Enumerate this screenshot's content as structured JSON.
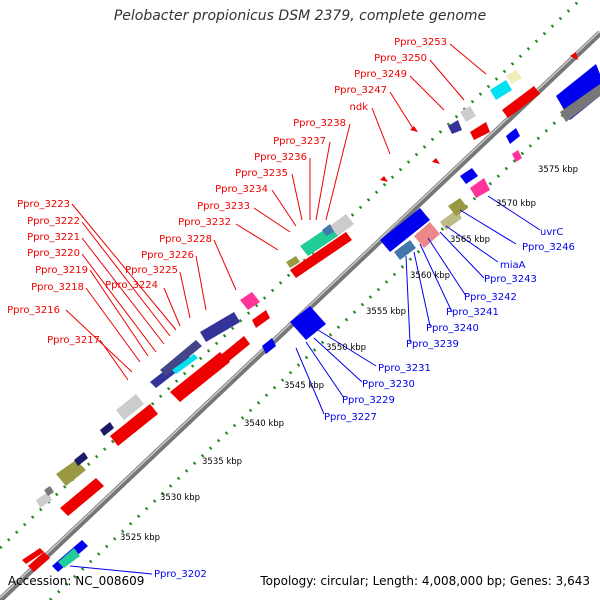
{
  "title": "Pelobacter propionicus DSM 2379, complete genome",
  "accession": "Accession: NC_008609",
  "summary": "Topology: circular; Length: 4,008,000 bp; Genes: 3,643",
  "colors": {
    "red": "#ee0000",
    "blue": "#0000ee",
    "navy": "#333399",
    "navy2": "#1a1a66",
    "indigo": "#444488",
    "cyan": "#00e0f0",
    "green": "#22cc99",
    "olive": "#999944",
    "olive2": "#bbbb88",
    "pink": "#ff3399",
    "gray": "#cccccc",
    "dkgray": "#777777",
    "slate": "#4477aa",
    "salmon": "#ee8888",
    "dots": "#228822"
  },
  "kbp_labels": [
    "3525 kbp",
    "3530 kbp",
    "3535 kbp",
    "3540 kbp",
    "3545 kbp",
    "3550 kbp",
    "3555 kbp",
    "3560 kbp",
    "3565 kbp",
    "3570 kbp",
    "3575 kbp"
  ],
  "red_labels": [
    "Ppro_3253",
    "Ppro_3250",
    "Ppro_3249",
    "Ppro_3247",
    "ndk",
    "Ppro_3238",
    "Ppro_3237",
    "Ppro_3236",
    "Ppro_3235",
    "Ppro_3234",
    "Ppro_3233",
    "Ppro_3232",
    "Ppro_3228",
    "Ppro_3226",
    "Ppro_3225",
    "Ppro_3224",
    "Ppro_3223",
    "Ppro_3222",
    "Ppro_3221",
    "Ppro_3220",
    "Ppro_3219",
    "Ppro_3218",
    "Ppro_3216",
    "Ppro_3217"
  ],
  "blue_labels": [
    "uvrC",
    "Ppro_3246",
    "miaA",
    "Ppro_3243",
    "Ppro_3242",
    "Ppro_3241",
    "Ppro_3240",
    "Ppro_3239",
    "Ppro_3231",
    "Ppro_3230",
    "Ppro_3229",
    "Ppro_3227",
    "Ppro_3202"
  ]
}
